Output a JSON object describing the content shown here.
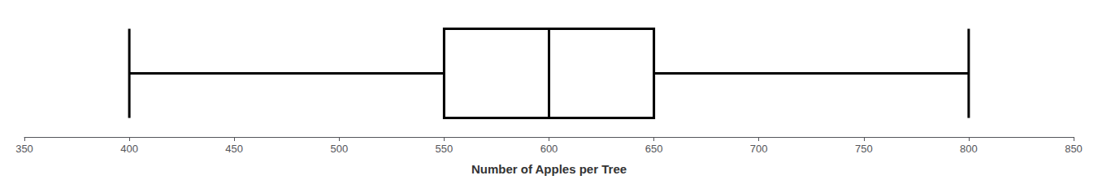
{
  "chart_data": {
    "type": "boxplot",
    "orientation": "horizontal",
    "xlabel": "Number of Apples per Tree",
    "min": 400,
    "q1": 550,
    "median": 600,
    "q3": 650,
    "max": 800,
    "xlim": [
      350,
      850
    ],
    "xticks": [
      350,
      400,
      450,
      500,
      550,
      600,
      650,
      700,
      750,
      800,
      850
    ],
    "color": "black",
    "grid": false,
    "tick_labels": "x"
  }
}
